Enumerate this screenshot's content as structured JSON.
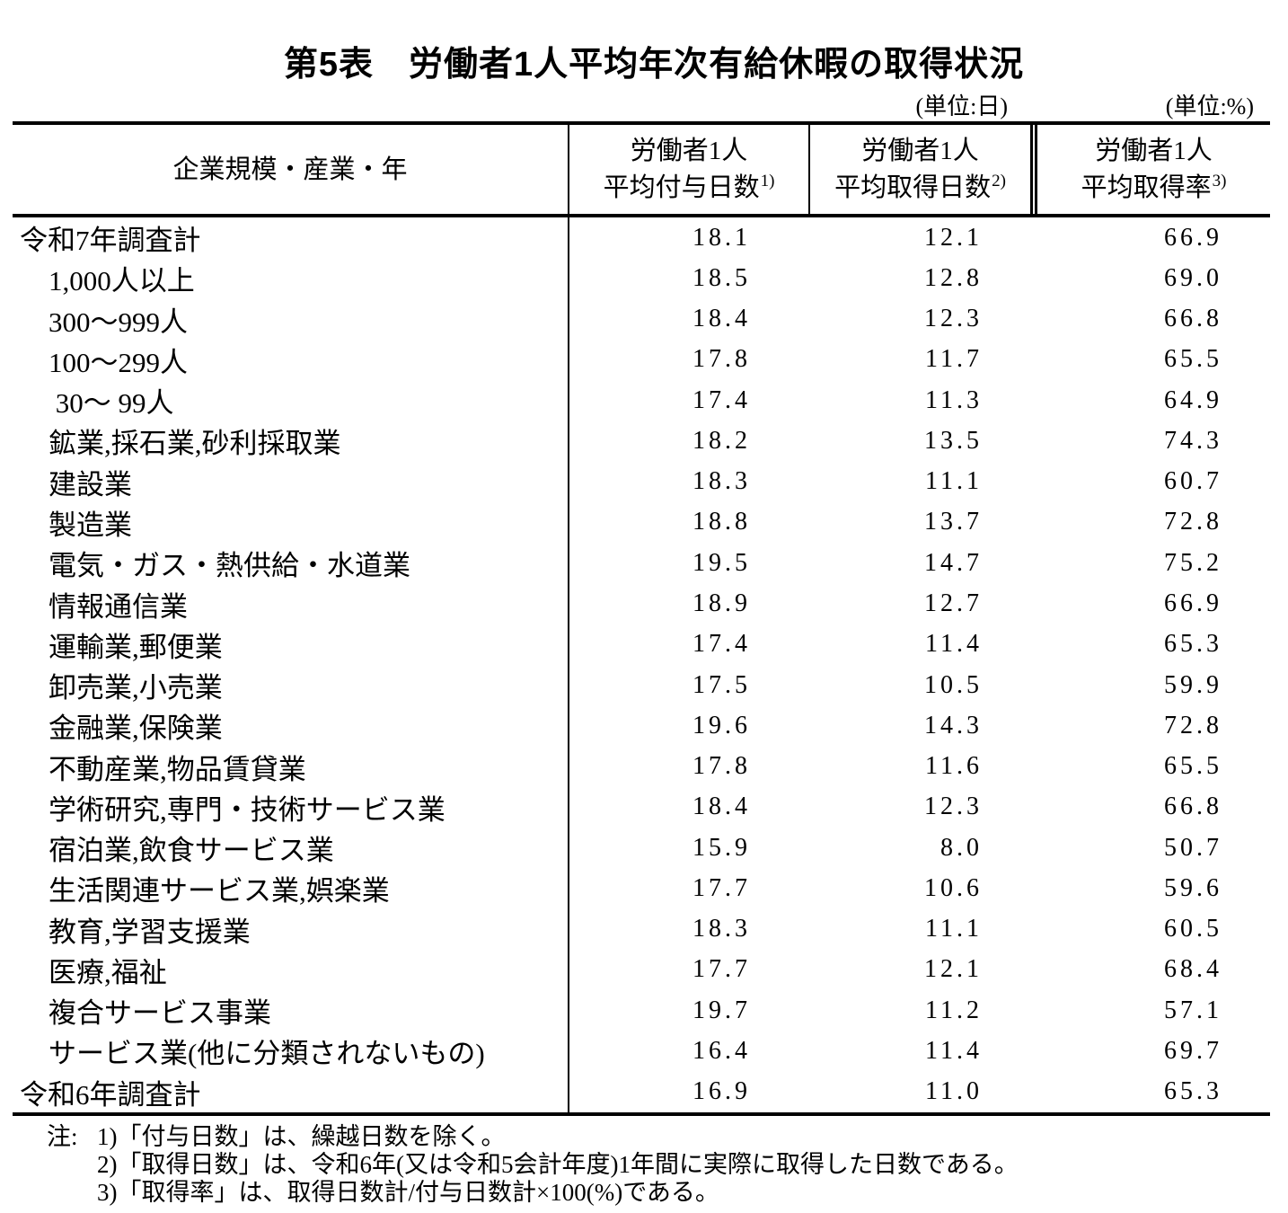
{
  "title": "第5表　労働者1人平均年次有給休暇の取得状況",
  "units": {
    "days": "(単位:日)",
    "percent": "(単位:%)"
  },
  "table": {
    "header": {
      "category": "企業規模・産業・年",
      "granted": {
        "line1": "労働者1人",
        "line2": "平均付与日数",
        "sup": "1)"
      },
      "taken": {
        "line1": "労働者1人",
        "line2": "平均取得日数",
        "sup": "2)"
      },
      "rate": {
        "line1": "労働者1人",
        "line2": "平均取得率",
        "sup": "3)"
      }
    },
    "rows": [
      {
        "label": "令和7年調査計",
        "indent": 0,
        "granted_days": "18.1",
        "taken_days": "12.1",
        "rate": "66.9"
      },
      {
        "label": "1,000人以上",
        "indent": 1,
        "granted_days": "18.5",
        "taken_days": "12.8",
        "rate": "69.0"
      },
      {
        "label": "300〜999人",
        "indent": 1,
        "granted_days": "18.4",
        "taken_days": "12.3",
        "rate": "66.8"
      },
      {
        "label": "100〜299人",
        "indent": 1,
        "granted_days": "17.8",
        "taken_days": "11.7",
        "rate": "65.5"
      },
      {
        "label": " 30〜 99人",
        "indent": 1,
        "granted_days": "17.4",
        "taken_days": "11.3",
        "rate": "64.9"
      },
      {
        "label": "鉱業,採石業,砂利採取業",
        "indent": 1,
        "granted_days": "18.2",
        "taken_days": "13.5",
        "rate": "74.3"
      },
      {
        "label": "建設業",
        "indent": 1,
        "granted_days": "18.3",
        "taken_days": "11.1",
        "rate": "60.7"
      },
      {
        "label": "製造業",
        "indent": 1,
        "granted_days": "18.8",
        "taken_days": "13.7",
        "rate": "72.8"
      },
      {
        "label": "電気・ガス・熱供給・水道業",
        "indent": 1,
        "granted_days": "19.5",
        "taken_days": "14.7",
        "rate": "75.2"
      },
      {
        "label": "情報通信業",
        "indent": 1,
        "granted_days": "18.9",
        "taken_days": "12.7",
        "rate": "66.9"
      },
      {
        "label": "運輸業,郵便業",
        "indent": 1,
        "granted_days": "17.4",
        "taken_days": "11.4",
        "rate": "65.3"
      },
      {
        "label": "卸売業,小売業",
        "indent": 1,
        "granted_days": "17.5",
        "taken_days": "10.5",
        "rate": "59.9"
      },
      {
        "label": "金融業,保険業",
        "indent": 1,
        "granted_days": "19.6",
        "taken_days": "14.3",
        "rate": "72.8"
      },
      {
        "label": "不動産業,物品賃貸業",
        "indent": 1,
        "granted_days": "17.8",
        "taken_days": "11.6",
        "rate": "65.5"
      },
      {
        "label": "学術研究,専門・技術サービス業",
        "indent": 1,
        "granted_days": "18.4",
        "taken_days": "12.3",
        "rate": "66.8"
      },
      {
        "label": "宿泊業,飲食サービス業",
        "indent": 1,
        "granted_days": "15.9",
        "taken_days": "8.0",
        "rate": "50.7"
      },
      {
        "label": "生活関連サービス業,娯楽業",
        "indent": 1,
        "granted_days": "17.7",
        "taken_days": "10.6",
        "rate": "59.6"
      },
      {
        "label": "教育,学習支援業",
        "indent": 1,
        "granted_days": "18.3",
        "taken_days": "11.1",
        "rate": "60.5"
      },
      {
        "label": "医療,福祉",
        "indent": 1,
        "granted_days": "17.7",
        "taken_days": "12.1",
        "rate": "68.4"
      },
      {
        "label": "複合サービス事業",
        "indent": 1,
        "granted_days": "19.7",
        "taken_days": "11.2",
        "rate": "57.1"
      },
      {
        "label": "サービス業(他に分類されないもの)",
        "indent": 1,
        "granted_days": "16.4",
        "taken_days": "11.4",
        "rate": "69.7"
      },
      {
        "label": "令和6年調査計",
        "indent": 0,
        "granted_days": "16.9",
        "taken_days": "11.0",
        "rate": "65.3"
      }
    ]
  },
  "notes": {
    "prefix": "注:",
    "items": [
      "1)「付与日数」は、繰越日数を除く。",
      "2)「取得日数」は、令和6年(又は令和5会計年度)1年間に実際に取得した日数である。",
      "3)「取得率」は、取得日数計/付与日数計×100(%)である。"
    ]
  }
}
